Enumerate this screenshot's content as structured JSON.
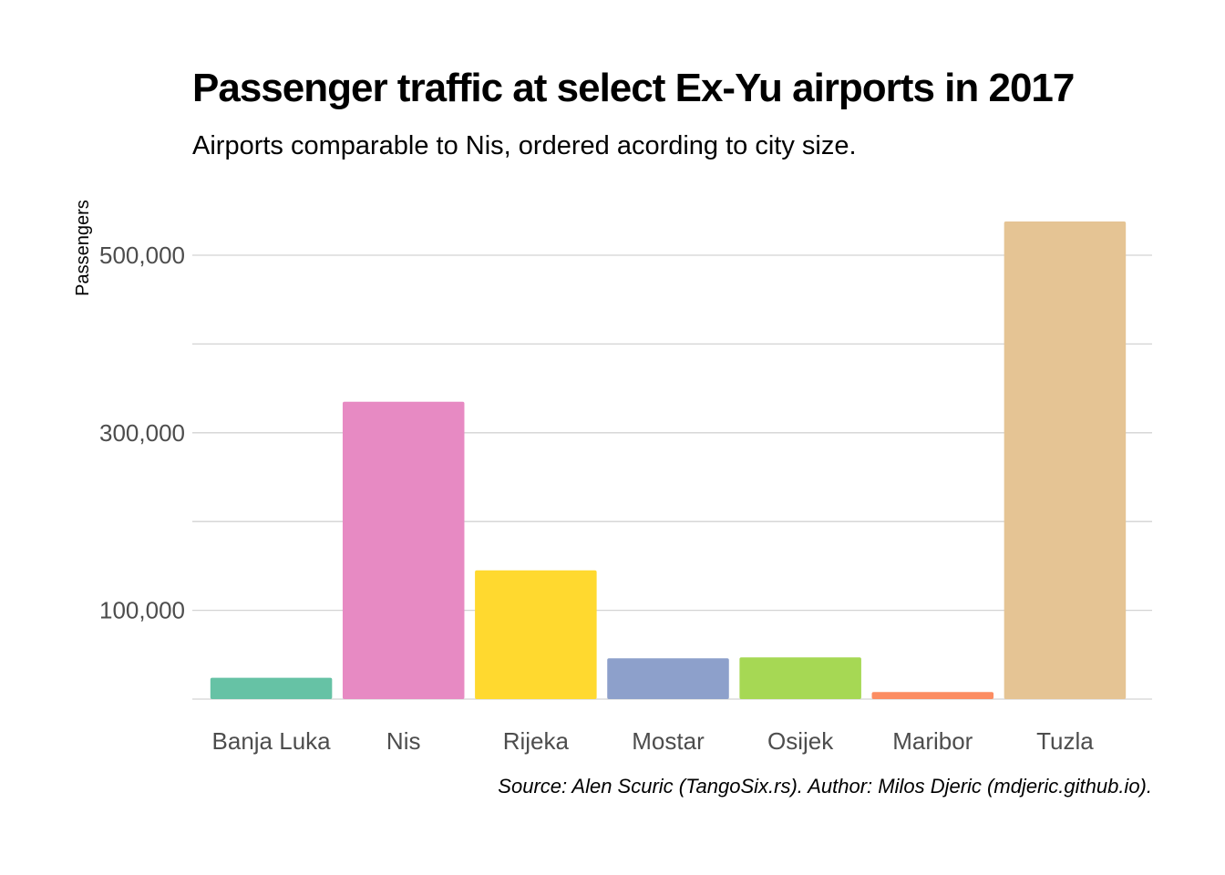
{
  "chart_data": {
    "type": "bar",
    "title": "Passenger traffic at select Ex-Yu airports in 2017",
    "subtitle": "Airports comparable to Nis, ordered acording to city size.",
    "caption": "Source: Alen Scuric (TangoSix.rs). Author: Milos Djeric (mdjeric.github.io).",
    "xlabel": "",
    "ylabel": "Passengers",
    "categories": [
      "Banja Luka",
      "Nis",
      "Rijeka",
      "Mostar",
      "Osijek",
      "Maribor",
      "Tuzla"
    ],
    "values": [
      24000,
      335000,
      145000,
      46000,
      47000,
      8000,
      538000
    ],
    "colors": [
      "#66c2a5",
      "#e78ac3",
      "#ffd92f",
      "#8da0cb",
      "#a6d854",
      "#fc8d62",
      "#e5c494"
    ],
    "ylim": [
      0,
      560000
    ],
    "y_ticks": [
      100000,
      300000,
      500000
    ],
    "y_tick_labels": [
      "100,000",
      "300,000",
      "500,000"
    ],
    "y_minor_gridlines": [
      0,
      200000,
      400000
    ],
    "grid": true,
    "legend": "none"
  }
}
